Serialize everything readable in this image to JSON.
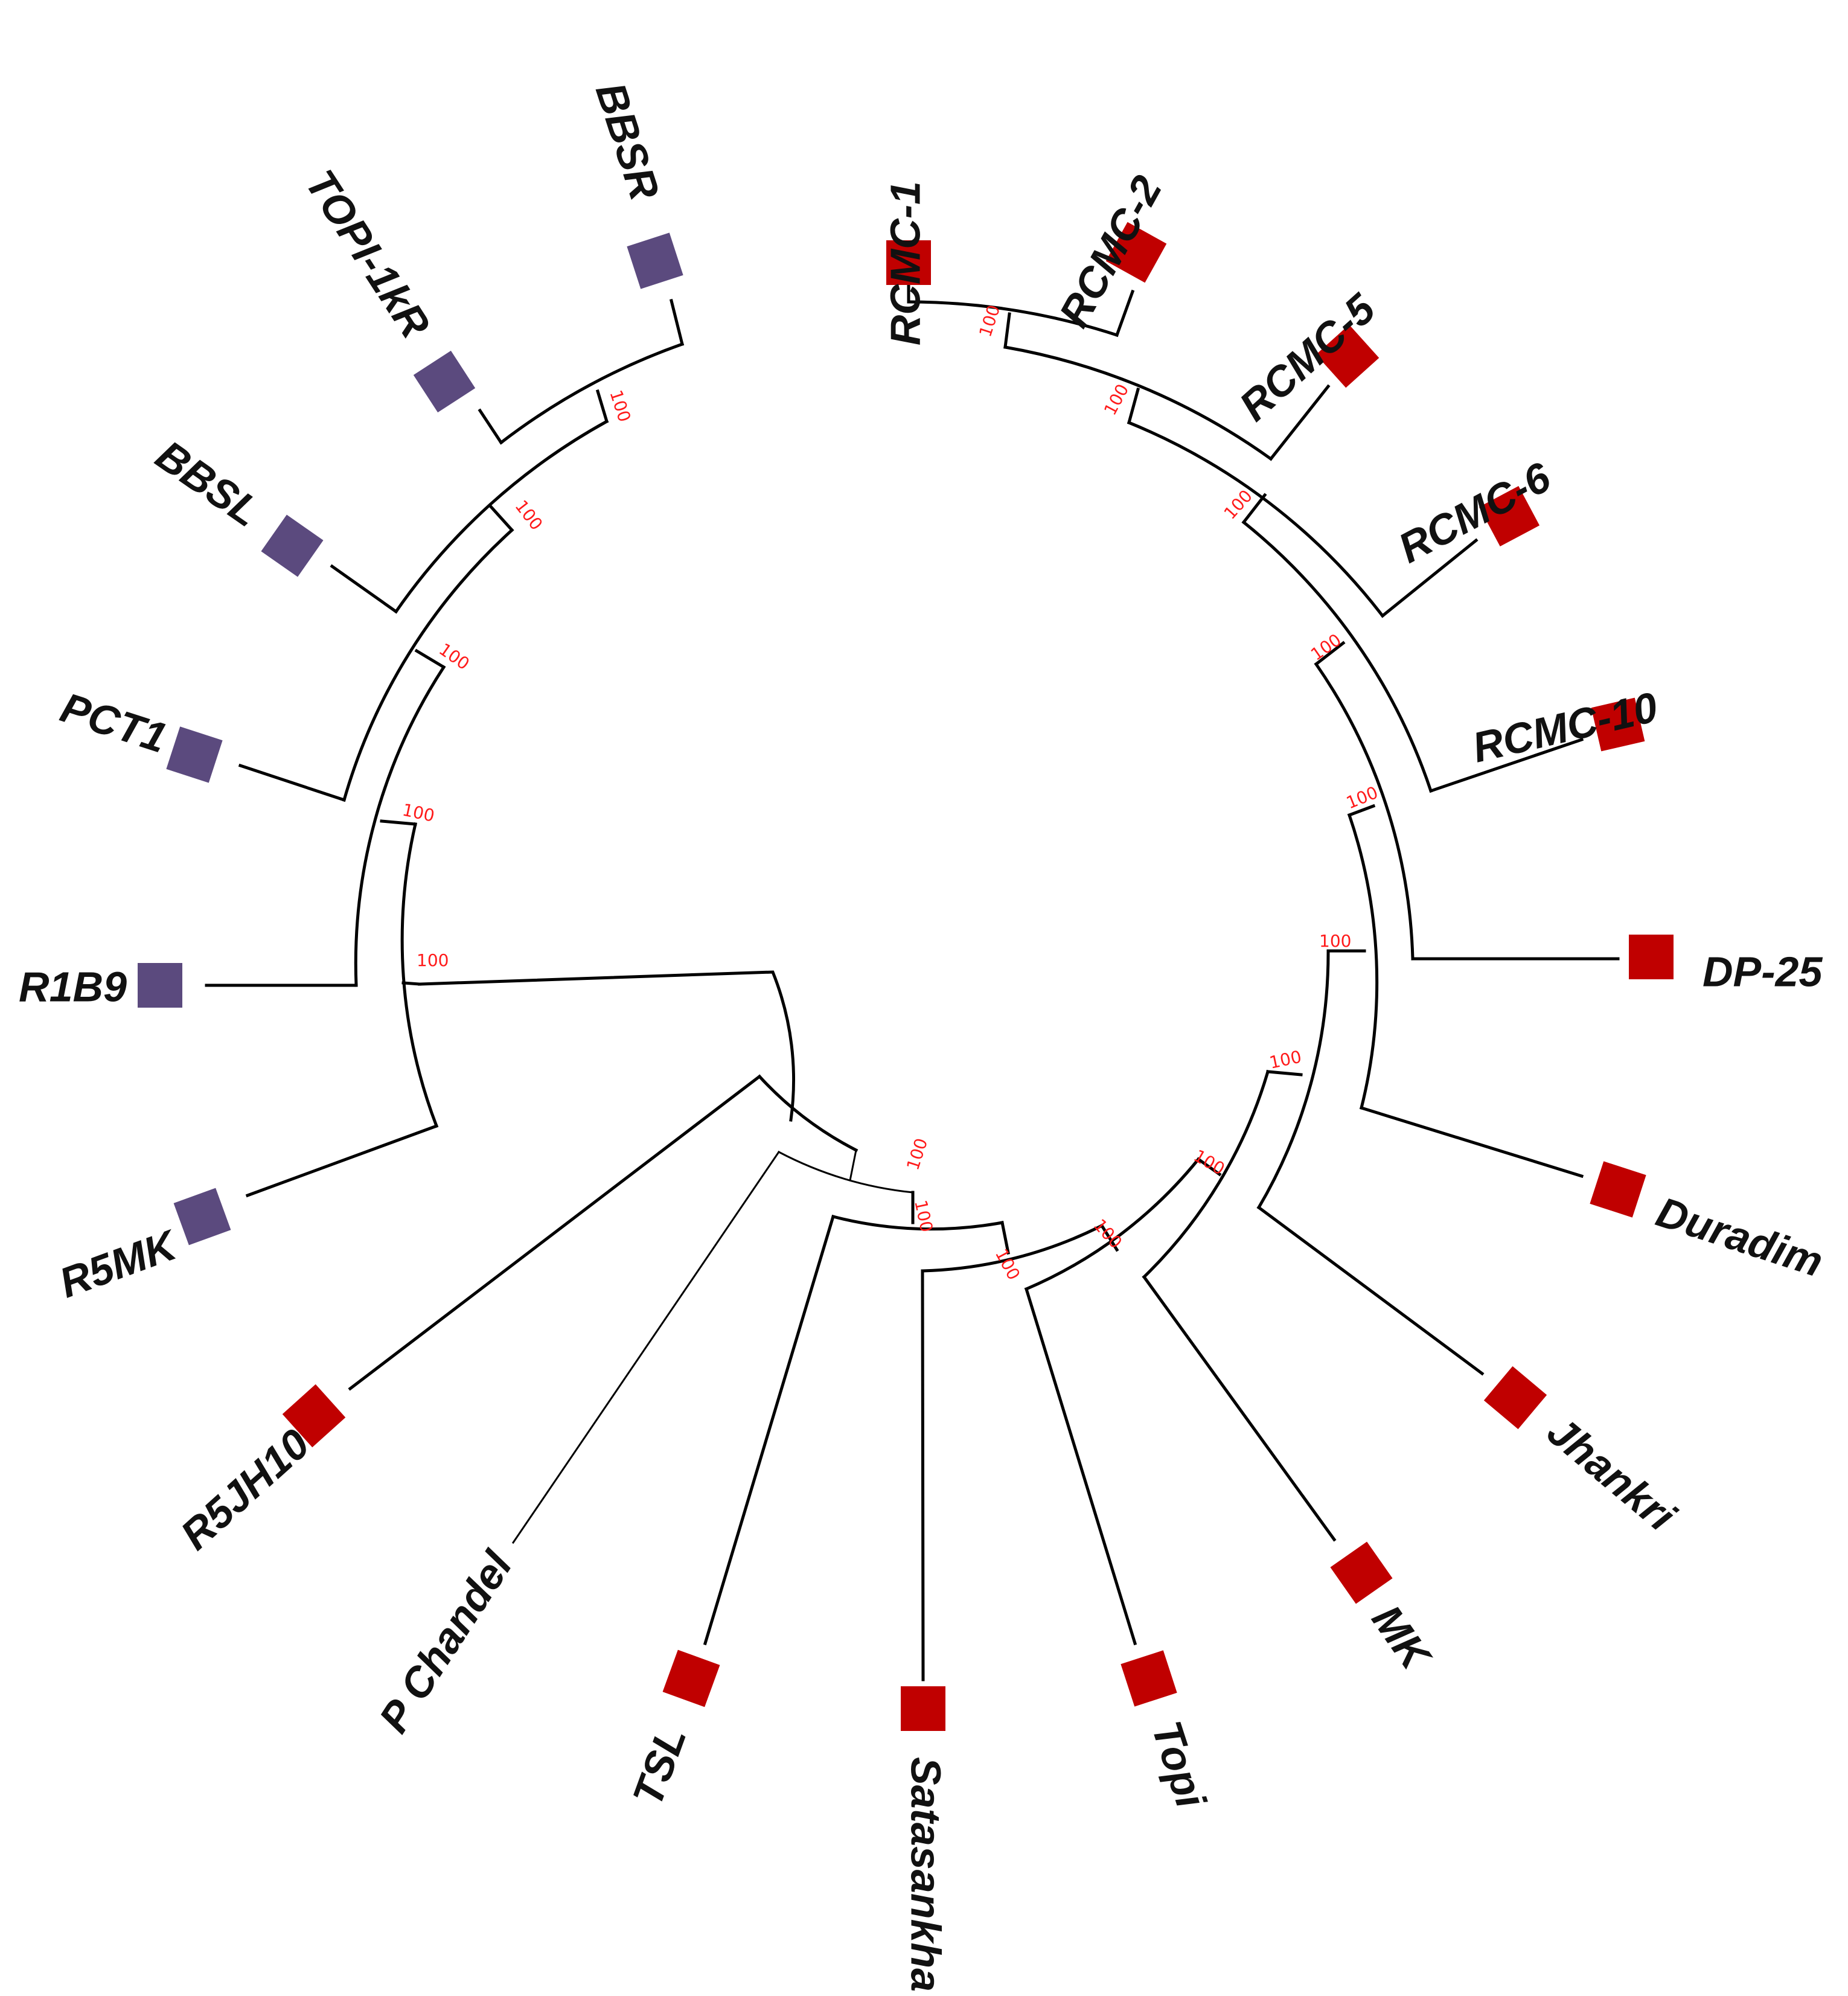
{
  "colors": {
    "group_red": "#c00000",
    "group_purple": "#5b4a7e",
    "bootstrap": "#ff1a1a",
    "branch": "#000000"
  },
  "taxa": [
    {
      "label": "RCMC-1",
      "group": "red"
    },
    {
      "label": "RCMC-2",
      "group": "red"
    },
    {
      "label": "RCMC-5",
      "group": "red"
    },
    {
      "label": "RCMC-6",
      "group": "red"
    },
    {
      "label": "RCMC-10",
      "group": "red"
    },
    {
      "label": "DP-25",
      "group": "red"
    },
    {
      "label": "Duradim",
      "group": "red"
    },
    {
      "label": "Jhankri",
      "group": "red"
    },
    {
      "label": "MK",
      "group": "red"
    },
    {
      "label": "Topi",
      "group": "red"
    },
    {
      "label": "Satasankha",
      "group": "red"
    },
    {
      "label": "TSL",
      "group": "red"
    },
    {
      "label": "P Chandel",
      "group": "none"
    },
    {
      "label": "R5JH10",
      "group": "red"
    },
    {
      "label": "R5MK",
      "group": "purple"
    },
    {
      "label": "R1B9",
      "group": "purple"
    },
    {
      "label": "PCT1",
      "group": "purple"
    },
    {
      "label": "BBSL",
      "group": "purple"
    },
    {
      "label": "TOPI-1kR",
      "group": "purple"
    },
    {
      "label": "BBSR",
      "group": "purple"
    }
  ],
  "bootstrap_labels": [
    {
      "node": "RCMC-1+RCMC-2",
      "value": "100"
    },
    {
      "node": "+RCMC-5",
      "value": "100"
    },
    {
      "node": "+RCMC-6",
      "value": "100"
    },
    {
      "node": "+RCMC-10",
      "value": "100"
    },
    {
      "node": "+DP-25",
      "value": "100"
    },
    {
      "node": "+Duradim",
      "value": "100"
    },
    {
      "node": "+Jhankri",
      "value": "100"
    },
    {
      "node": "+MK",
      "value": "100"
    },
    {
      "node": "+Topi",
      "value": "100"
    },
    {
      "node": "+Satasankha",
      "value": "100"
    },
    {
      "node": "+TSL",
      "value": "100"
    },
    {
      "node": "+P Chandel",
      "value": "100"
    },
    {
      "node": "BBSR+TOPI-1kR",
      "value": "100"
    },
    {
      "node": "+BBSL",
      "value": "100"
    },
    {
      "node": "+PCT1",
      "value": "100"
    },
    {
      "node": "+R1B9",
      "value": "100"
    },
    {
      "node": "+R5MK",
      "value": "100"
    }
  ]
}
